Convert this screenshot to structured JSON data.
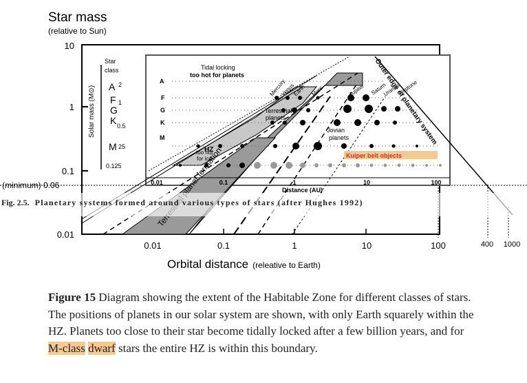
{
  "figure": {
    "title": "Star mass",
    "title_sub": "(relative to Sun)",
    "y_ticks": [
      "10",
      "1",
      "0.1",
      "0.01"
    ],
    "x_ticks": [
      "0.01",
      "0.1",
      "1",
      "10",
      "100",
      "400",
      "1000"
    ],
    "minimum_label": "(minimum) 0.06",
    "x_axis_label": "Orbital distance",
    "x_axis_sub": "(releative to Earth)",
    "inset": {
      "star_class_label": "Star class",
      "solar_mass_label": "Solar mass (M⊙)",
      "classes": [
        "A",
        "F",
        "G",
        "K",
        "M"
      ],
      "mass_ticks": [
        "2",
        "1",
        "0.5",
        "25",
        "0.125"
      ],
      "x_ticks": [
        "0.01",
        "0.1",
        "1",
        "10",
        "100"
      ],
      "x_label": "Distance (AU)",
      "tidal_label": "Tidal locking too hot for planets",
      "terrestrial_label": "Terrestrial planets",
      "jovian_label": "Jovian planets",
      "kuiper_label": "Kuiper belt objects",
      "too_hot_ice_label": "too hot for ice",
      "hz_label": "HZ",
      "outer_edge_label": "Outer edge of planetary system",
      "planets": [
        "Mercury",
        "Venus",
        "Earth",
        "Mars",
        "Jupiter",
        "Saturn",
        "Uranus",
        "Neptune"
      ]
    },
    "terrestrial_formation_label": "Terrestrial planet formation",
    "inset_caption_bold": "Fig. 2.5.",
    "inset_caption_text": "Planetary systems formed around various types of stars (after Hughes 1992)"
  },
  "caption": {
    "label": "Figure 15",
    "text_1": "Diagram showing the extent of the Habitable Zone for different classes of stars. The positions of planets in our solar system are shown, with only Earth squarely within the HZ. Planets too close to their star become tidally locked after a few billion years, and for ",
    "highlight_1": "M-class",
    "space": " ",
    "highlight_2": "dwarf",
    "text_2": " stars the entire HZ is within this boundary."
  }
}
